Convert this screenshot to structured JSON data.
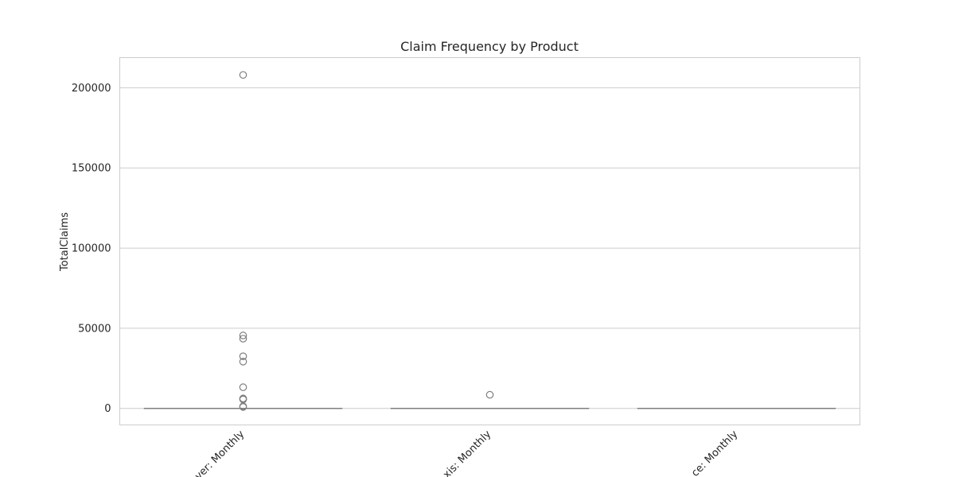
{
  "chart_data": {
    "type": "box",
    "title": "Claim Frequency by Product",
    "xlabel": "",
    "ylabel": "TotalClaims",
    "ylim": [
      -10300,
      218800
    ],
    "yticks": [
      0,
      50000,
      100000,
      150000,
      200000
    ],
    "ytick_labels": [
      "0",
      "50000",
      "100000",
      "150000",
      "200000"
    ],
    "grid": true,
    "categories": [
      "ver: Monthly",
      "xis: Monthly",
      "ce: Monthly"
    ],
    "boxes": [
      {
        "category": "ver: Monthly",
        "min": 0,
        "q1": 0,
        "median": 0,
        "q3": 0,
        "max": 0,
        "outliers": [
          208000,
          45500,
          43500,
          32500,
          29200,
          13200,
          6200,
          5900,
          5600,
          1300,
          900
        ]
      },
      {
        "category": "xis: Monthly",
        "min": 0,
        "q1": 0,
        "median": 0,
        "q3": 0,
        "max": 0,
        "outliers": [
          8500
        ]
      },
      {
        "category": "ce: Monthly",
        "min": 0,
        "q1": 0,
        "median": 0,
        "q3": 0,
        "max": 0,
        "outliers": []
      }
    ],
    "colors": {
      "box_line": "#7f7f7f",
      "grid": "#cccccc",
      "frame": "#cccccc",
      "text": "#262626"
    }
  }
}
